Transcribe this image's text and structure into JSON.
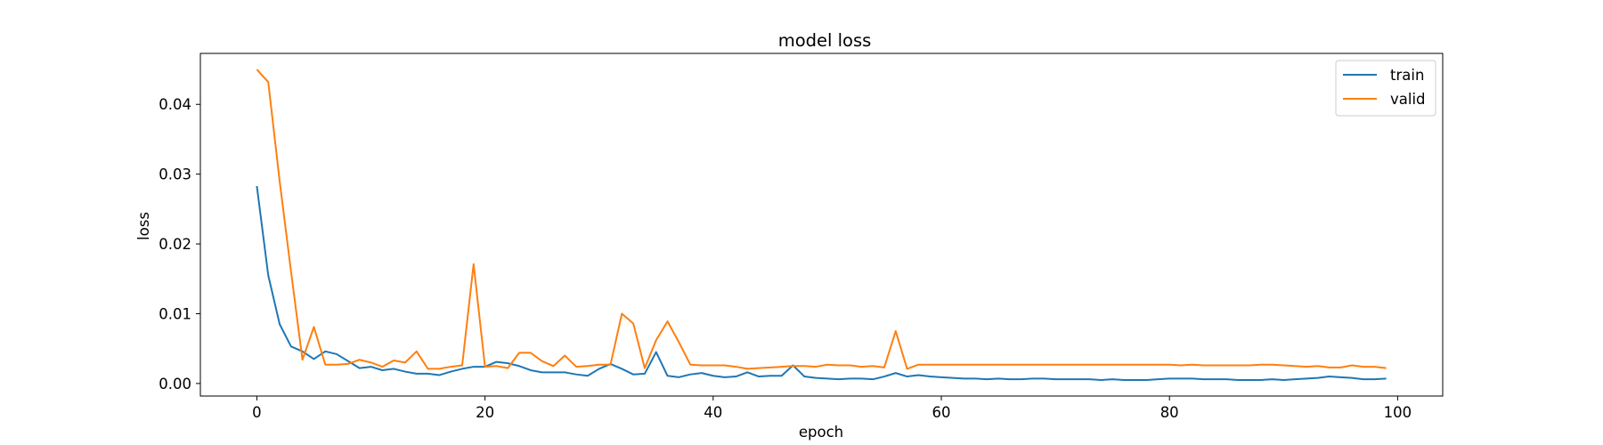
{
  "chart_data": {
    "type": "line",
    "title": "model loss",
    "xlabel": "epoch",
    "ylabel": "loss",
    "xlim": [
      -4.95,
      103.95
    ],
    "ylim": [
      -0.0018,
      0.0473
    ],
    "xticks": [
      0,
      20,
      40,
      60,
      80,
      100
    ],
    "xtick_labels": [
      "0",
      "20",
      "40",
      "60",
      "80",
      "100"
    ],
    "yticks": [
      0.0,
      0.01,
      0.02,
      0.03,
      0.04
    ],
    "ytick_labels": [
      "0.00",
      "0.01",
      "0.02",
      "0.03",
      "0.04"
    ],
    "grid": false,
    "legend_position": "top-right",
    "x": [
      0,
      1,
      2,
      3,
      4,
      5,
      6,
      7,
      8,
      9,
      10,
      11,
      12,
      13,
      14,
      15,
      16,
      17,
      18,
      19,
      20,
      21,
      22,
      23,
      24,
      25,
      26,
      27,
      28,
      29,
      30,
      31,
      32,
      33,
      34,
      35,
      36,
      37,
      38,
      39,
      40,
      41,
      42,
      43,
      44,
      45,
      46,
      47,
      48,
      49,
      50,
      51,
      52,
      53,
      54,
      55,
      56,
      57,
      58,
      59,
      60,
      61,
      62,
      63,
      64,
      65,
      66,
      67,
      68,
      69,
      70,
      71,
      72,
      73,
      74,
      75,
      76,
      77,
      78,
      79,
      80,
      81,
      82,
      83,
      84,
      85,
      86,
      87,
      88,
      89,
      90,
      91,
      92,
      93,
      94,
      95,
      96,
      97,
      98,
      99
    ],
    "series": [
      {
        "name": "train",
        "color": "#1f77b4",
        "values": [
          0.0283,
          0.0155,
          0.0085,
          0.0053,
          0.0046,
          0.0035,
          0.0046,
          0.0042,
          0.0032,
          0.0022,
          0.0024,
          0.0019,
          0.0021,
          0.0017,
          0.0014,
          0.0014,
          0.0012,
          0.0017,
          0.0021,
          0.0024,
          0.0024,
          0.0031,
          0.0029,
          0.0025,
          0.0019,
          0.0016,
          0.0016,
          0.0016,
          0.0013,
          0.0011,
          0.0021,
          0.0028,
          0.0021,
          0.0013,
          0.0014,
          0.0045,
          0.0011,
          0.0009,
          0.0013,
          0.0015,
          0.0011,
          0.0009,
          0.001,
          0.0016,
          0.001,
          0.0011,
          0.0011,
          0.0026,
          0.001,
          0.0008,
          0.0007,
          0.0006,
          0.0007,
          0.0007,
          0.0006,
          0.001,
          0.0015,
          0.001,
          0.0012,
          0.001,
          0.0009,
          0.0008,
          0.0007,
          0.0007,
          0.0006,
          0.0007,
          0.0006,
          0.0006,
          0.0007,
          0.0007,
          0.0006,
          0.0006,
          0.0006,
          0.0006,
          0.0005,
          0.0006,
          0.0005,
          0.0005,
          0.0005,
          0.0006,
          0.0007,
          0.0007,
          0.0007,
          0.0006,
          0.0006,
          0.0006,
          0.0005,
          0.0005,
          0.0005,
          0.0006,
          0.0005,
          0.0006,
          0.0007,
          0.0008,
          0.001,
          0.0009,
          0.0008,
          0.0006,
          0.0006,
          0.0007
        ]
      },
      {
        "name": "valid",
        "color": "#ff7f0e",
        "values": [
          0.045,
          0.0432,
          0.029,
          0.016,
          0.0034,
          0.0081,
          0.0027,
          0.0027,
          0.0028,
          0.0034,
          0.003,
          0.0024,
          0.0033,
          0.003,
          0.0046,
          0.0021,
          0.0021,
          0.0024,
          0.0026,
          0.0171,
          0.0024,
          0.0025,
          0.0022,
          0.0044,
          0.0044,
          0.0032,
          0.0025,
          0.004,
          0.0024,
          0.0025,
          0.0027,
          0.0027,
          0.01,
          0.0086,
          0.0022,
          0.0062,
          0.0089,
          0.0059,
          0.0027,
          0.0026,
          0.0026,
          0.0026,
          0.0024,
          0.0021,
          0.0022,
          0.0023,
          0.0024,
          0.0025,
          0.0025,
          0.0024,
          0.0027,
          0.0026,
          0.0026,
          0.0024,
          0.0025,
          0.0023,
          0.0075,
          0.0021,
          0.0027,
          0.0027,
          0.0027,
          0.0027,
          0.0027,
          0.0027,
          0.0027,
          0.0027,
          0.0027,
          0.0027,
          0.0027,
          0.0027,
          0.0027,
          0.0027,
          0.0027,
          0.0027,
          0.0027,
          0.0027,
          0.0027,
          0.0027,
          0.0027,
          0.0027,
          0.0027,
          0.0026,
          0.0027,
          0.0026,
          0.0026,
          0.0026,
          0.0026,
          0.0026,
          0.0027,
          0.0027,
          0.0026,
          0.0025,
          0.0024,
          0.0025,
          0.0023,
          0.0023,
          0.0026,
          0.0024,
          0.0024,
          0.0022
        ]
      }
    ]
  }
}
